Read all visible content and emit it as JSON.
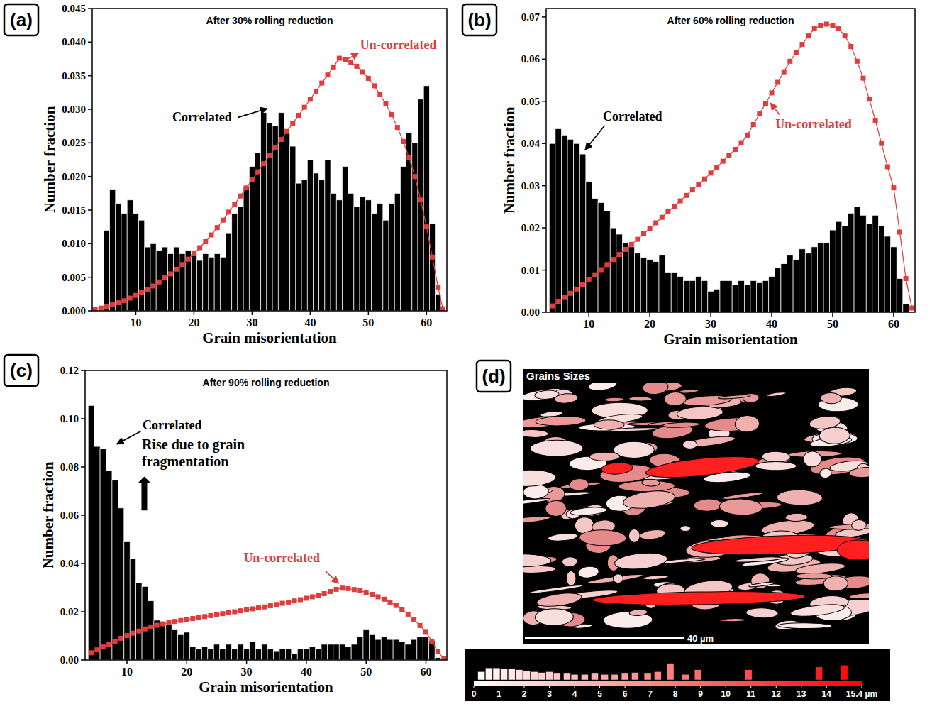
{
  "chart_data": [
    {
      "type": "histogram",
      "panel": "(a)",
      "title": "After 30% rolling reduction",
      "x_label": "Grain misorientation",
      "y_label": "Number fraction",
      "xlim": [
        2.5,
        63.5
      ],
      "ylim": [
        0,
        0.045
      ],
      "xticks": [
        10,
        20,
        30,
        40,
        50,
        60
      ],
      "yticks": [
        {
          "value": 0,
          "label": "0.000"
        },
        {
          "value": 0.005,
          "label": "0.005"
        },
        {
          "value": 0.01,
          "label": "0.010"
        },
        {
          "value": 0.015,
          "label": "0.015"
        },
        {
          "value": 0.02,
          "label": "0.020"
        },
        {
          "value": 0.025,
          "label": "0.025"
        },
        {
          "value": 0.03,
          "label": "0.030"
        },
        {
          "value": 0.035,
          "label": "0.035"
        },
        {
          "value": 0.04,
          "label": "0.040"
        },
        {
          "value": 0.045,
          "label": "0.045"
        }
      ],
      "series": [
        {
          "name": "Correlated",
          "color": "#000000",
          "bins": [
            4.5,
            5.5,
            6.5,
            7.5,
            8.5,
            9.5,
            10.5,
            11.5,
            12.5,
            13.5,
            14.5,
            15.5,
            16.5,
            17.5,
            18.5,
            19.5,
            20.5,
            21.5,
            22.5,
            23.5,
            24.5,
            25.5,
            26.5,
            27.5,
            28.5,
            29.5,
            30.5,
            31.5,
            32.5,
            33.5,
            34.5,
            35.5,
            36.5,
            37.5,
            38.5,
            39.5,
            40.5,
            41.5,
            42.5,
            43.5,
            44.5,
            45.5,
            46.5,
            47.5,
            48.5,
            49.5,
            50.5,
            51.5,
            52.5,
            53.5,
            54.5,
            55.5,
            56.5,
            57.5,
            58.5,
            59.5,
            60.5,
            61.5,
            62.5
          ],
          "values": [
            0.012,
            0.018,
            0.016,
            0.0145,
            0.0165,
            0.0145,
            0.0135,
            0.0095,
            0.01,
            0.009,
            0.0095,
            0.0085,
            0.0095,
            0.0085,
            0.009,
            0.0085,
            0.0075,
            0.0085,
            0.008,
            0.0085,
            0.008,
            0.0115,
            0.0145,
            0.0155,
            0.0185,
            0.0215,
            0.0235,
            0.0295,
            0.028,
            0.0275,
            0.0295,
            0.0265,
            0.0245,
            0.019,
            0.0195,
            0.0225,
            0.0205,
            0.0195,
            0.0225,
            0.0175,
            0.0165,
            0.0215,
            0.0175,
            0.0155,
            0.017,
            0.0165,
            0.0145,
            0.016,
            0.0135,
            0.016,
            0.0175,
            0.0215,
            0.0265,
            0.025,
            0.0315,
            0.0335,
            0.013,
            0.0025
          ]
        },
        {
          "name": "Un-correlated",
          "type": "line",
          "color": "#e03c3c",
          "marker": "square",
          "x": [
            3,
            4,
            5,
            6,
            7,
            8,
            9,
            10,
            11,
            12,
            13,
            14,
            15,
            16,
            17,
            18,
            19,
            20,
            21,
            22,
            23,
            24,
            25,
            26,
            27,
            28,
            29,
            30,
            31,
            32,
            33,
            34,
            35,
            36,
            37,
            38,
            39,
            40,
            41,
            42,
            43,
            44,
            45,
            46,
            47,
            48,
            49,
            50,
            51,
            52,
            53,
            54,
            55,
            56,
            57,
            58,
            59,
            60,
            61,
            62,
            62.8
          ],
          "values": [
            0.0002,
            0.0004,
            0.0006,
            0.0009,
            0.0012,
            0.0015,
            0.0019,
            0.0023,
            0.0027,
            0.0032,
            0.0037,
            0.0043,
            0.0049,
            0.0055,
            0.0062,
            0.0069,
            0.0077,
            0.0085,
            0.0094,
            0.0103,
            0.0113,
            0.0124,
            0.0135,
            0.0147,
            0.0159,
            0.0171,
            0.0183,
            0.0195,
            0.0207,
            0.0219,
            0.0231,
            0.0243,
            0.0255,
            0.0267,
            0.0279,
            0.0291,
            0.0303,
            0.0315,
            0.0327,
            0.0339,
            0.0351,
            0.0363,
            0.0376,
            0.0374,
            0.037,
            0.0364,
            0.0356,
            0.0346,
            0.0335,
            0.0322,
            0.0308,
            0.0292,
            0.0273,
            0.0252,
            0.0228,
            0.02,
            0.0165,
            0.0125,
            0.008,
            0.0035,
            0.0003
          ]
        }
      ]
    },
    {
      "type": "histogram",
      "panel": "(b)",
      "title": "After 60% rolling reduction",
      "x_label": "Grain misorientation",
      "y_label": "Number fraction",
      "xlim": [
        3,
        63.5
      ],
      "ylim": [
        0,
        0.072
      ],
      "xticks": [
        10,
        20,
        30,
        40,
        50,
        60
      ],
      "yticks": [
        {
          "value": 0,
          "label": "0.00"
        },
        {
          "value": 0.01,
          "label": "0.01"
        },
        {
          "value": 0.02,
          "label": "0.02"
        },
        {
          "value": 0.03,
          "label": "0.03"
        },
        {
          "value": 0.04,
          "label": "0.04"
        },
        {
          "value": 0.05,
          "label": "0.05"
        },
        {
          "value": 0.06,
          "label": "0.06"
        },
        {
          "value": 0.07,
          "label": "0.07"
        }
      ],
      "series": [
        {
          "name": "Correlated",
          "color": "#000000",
          "bins": [
            3.5,
            4.5,
            5.5,
            6.5,
            7.5,
            8.5,
            9.5,
            10.5,
            11.5,
            12.5,
            13.5,
            14.5,
            15.5,
            16.5,
            17.5,
            18.5,
            19.5,
            20.5,
            21.5,
            22.5,
            23.5,
            24.5,
            25.5,
            26.5,
            27.5,
            28.5,
            29.5,
            30.5,
            31.5,
            32.5,
            33.5,
            34.5,
            35.5,
            36.5,
            37.5,
            38.5,
            39.5,
            40.5,
            41.5,
            42.5,
            43.5,
            44.5,
            45.5,
            46.5,
            47.5,
            48.5,
            49.5,
            50.5,
            51.5,
            52.5,
            53.5,
            54.5,
            55.5,
            56.5,
            57.5,
            58.5,
            59.5,
            60.5,
            61.5,
            62.5
          ],
          "values": [
            0.04,
            0.0435,
            0.042,
            0.041,
            0.04,
            0.0375,
            0.031,
            0.027,
            0.026,
            0.024,
            0.02,
            0.0185,
            0.0165,
            0.0155,
            0.014,
            0.013,
            0.0125,
            0.012,
            0.0135,
            0.0095,
            0.0095,
            0.0085,
            0.0075,
            0.0075,
            0.0085,
            0.0075,
            0.005,
            0.0055,
            0.0075,
            0.0075,
            0.0065,
            0.0075,
            0.0065,
            0.0075,
            0.007,
            0.0075,
            0.0085,
            0.0105,
            0.0115,
            0.0135,
            0.0125,
            0.015,
            0.014,
            0.0155,
            0.0165,
            0.0165,
            0.0195,
            0.0215,
            0.0205,
            0.0235,
            0.025,
            0.023,
            0.021,
            0.023,
            0.0205,
            0.018,
            0.0155,
            0.008,
            0.002
          ]
        },
        {
          "name": "Un-correlated",
          "type": "line",
          "color": "#e03c3c",
          "marker": "square",
          "x": [
            4,
            5,
            6,
            7,
            8,
            9,
            10,
            11,
            12,
            13,
            14,
            15,
            16,
            17,
            18,
            19,
            20,
            21,
            22,
            23,
            24,
            25,
            26,
            27,
            28,
            29,
            30,
            31,
            32,
            33,
            34,
            35,
            36,
            37,
            38,
            39,
            40,
            41,
            42,
            43,
            44,
            45,
            46,
            47,
            48,
            49,
            50,
            51,
            52,
            53,
            54,
            55,
            56,
            57,
            58,
            59,
            60,
            61,
            62,
            63
          ],
          "values": [
            0.0015,
            0.0025,
            0.0035,
            0.0045,
            0.0055,
            0.0065,
            0.0077,
            0.0089,
            0.0101,
            0.0113,
            0.0125,
            0.0137,
            0.0149,
            0.0161,
            0.0173,
            0.0186,
            0.0199,
            0.0212,
            0.0225,
            0.0238,
            0.0251,
            0.0264,
            0.0277,
            0.029,
            0.0303,
            0.0316,
            0.033,
            0.0344,
            0.0358,
            0.0372,
            0.0386,
            0.0402,
            0.042,
            0.0445,
            0.047,
            0.0495,
            0.052,
            0.0545,
            0.057,
            0.0595,
            0.0615,
            0.0635,
            0.0655,
            0.0672,
            0.068,
            0.0683,
            0.068,
            0.0672,
            0.0655,
            0.063,
            0.0595,
            0.0555,
            0.0505,
            0.0455,
            0.04,
            0.0345,
            0.0295,
            0.019,
            0.008,
            0.001
          ]
        }
      ]
    },
    {
      "type": "histogram",
      "panel": "(c)",
      "title": "After 90% rolling reduction",
      "x_label": "Grain misorientation",
      "y_label": "Number fraction",
      "xlim": [
        3,
        63.5
      ],
      "ylim": [
        0,
        0.12
      ],
      "xticks": [
        10,
        20,
        30,
        40,
        50,
        60
      ],
      "yticks": [
        {
          "value": 0,
          "label": "0.00"
        },
        {
          "value": 0.02,
          "label": "0.02"
        },
        {
          "value": 0.04,
          "label": "0.04"
        },
        {
          "value": 0.06,
          "label": "0.06"
        },
        {
          "value": 0.08,
          "label": "0.08"
        },
        {
          "value": 0.1,
          "label": "0.10"
        },
        {
          "value": 0.12,
          "label": "0.12"
        }
      ],
      "annotations": [
        "Rise due to grain fragmentation"
      ],
      "series": [
        {
          "name": "Correlated",
          "color": "#000000",
          "bins": [
            3.5,
            4.5,
            5.5,
            6.5,
            7.5,
            8.5,
            9.5,
            10.5,
            11.5,
            12.5,
            13.5,
            14.5,
            15.5,
            16.5,
            17.5,
            18.5,
            19.5,
            20.5,
            21.5,
            22.5,
            23.5,
            24.5,
            25.5,
            26.5,
            27.5,
            28.5,
            29.5,
            30.5,
            31.5,
            32.5,
            33.5,
            34.5,
            35.5,
            36.5,
            37.5,
            38.5,
            39.5,
            40.5,
            41.5,
            42.5,
            43.5,
            44.5,
            45.5,
            46.5,
            47.5,
            48.5,
            49.5,
            50.5,
            51.5,
            52.5,
            53.5,
            54.5,
            55.5,
            56.5,
            57.5,
            58.5,
            59.5,
            60.5,
            61.5,
            62.5
          ],
          "values": [
            0.1055,
            0.0885,
            0.0875,
            0.0785,
            0.0745,
            0.063,
            0.049,
            0.042,
            0.032,
            0.0305,
            0.0245,
            0.0165,
            0.0155,
            0.0145,
            0.0125,
            0.0105,
            0.0115,
            0.0055,
            0.0045,
            0.0055,
            0.0045,
            0.0065,
            0.0045,
            0.0065,
            0.0045,
            0.0065,
            0.0045,
            0.0075,
            0.0045,
            0.0065,
            0.0045,
            0.0035,
            0.0045,
            0.0045,
            0.0025,
            0.0045,
            0.0045,
            0.0055,
            0.0045,
            0.0065,
            0.0065,
            0.0065,
            0.0065,
            0.0055,
            0.0065,
            0.0095,
            0.0125,
            0.0105,
            0.0085,
            0.0095,
            0.0085,
            0.0085,
            0.0075,
            0.0065,
            0.0085,
            0.0095,
            0.0095,
            0.008,
            0.001
          ]
        },
        {
          "name": "Un-correlated",
          "type": "line",
          "color": "#e03c3c",
          "marker": "square",
          "x": [
            4,
            5,
            6,
            7,
            8,
            9,
            10,
            11,
            12,
            13,
            14,
            15,
            16,
            17,
            18,
            19,
            20,
            21,
            22,
            23,
            24,
            25,
            26,
            27,
            28,
            29,
            30,
            31,
            32,
            33,
            34,
            35,
            36,
            37,
            38,
            39,
            40,
            41,
            42,
            43,
            44,
            45,
            46,
            47,
            48,
            49,
            50,
            51,
            52,
            53,
            54,
            55,
            56,
            57,
            58,
            59,
            60,
            61,
            62,
            63
          ],
          "values": [
            0.003,
            0.0042,
            0.0054,
            0.0066,
            0.0078,
            0.009,
            0.0101,
            0.0111,
            0.012,
            0.0129,
            0.0137,
            0.0144,
            0.015,
            0.0155,
            0.016,
            0.0164,
            0.0168,
            0.0172,
            0.0176,
            0.018,
            0.0184,
            0.0188,
            0.0192,
            0.0196,
            0.02,
            0.0204,
            0.0208,
            0.0212,
            0.0216,
            0.022,
            0.0225,
            0.023,
            0.0235,
            0.024,
            0.0245,
            0.025,
            0.0256,
            0.0262,
            0.0268,
            0.0275,
            0.0284,
            0.0293,
            0.0298,
            0.0296,
            0.0292,
            0.0287,
            0.028,
            0.0272,
            0.0262,
            0.0252,
            0.024,
            0.0226,
            0.021,
            0.019,
            0.0168,
            0.0143,
            0.0115,
            0.0078,
            0.0035,
            0.0005
          ]
        }
      ]
    },
    {
      "type": "grain_map",
      "panel": "(d)",
      "title": "Grains Sizes",
      "scale_label": "40 µm",
      "color_bar": {
        "type": "bar",
        "xlim": [
          0,
          15.4
        ],
        "ylim": [
          0,
          1
        ],
        "xticks": [
          0,
          1,
          2,
          3,
          4,
          5,
          6,
          7,
          8,
          9,
          10,
          11,
          12,
          13,
          14,
          {
            "value": 15.4,
            "label": "15.4 µm"
          }
        ],
        "x": [
          0.3,
          0.6,
          0.9,
          1.2,
          1.5,
          1.8,
          2.1,
          2.4,
          2.7,
          3.0,
          3.3,
          3.7,
          4.0,
          4.4,
          4.8,
          5.2,
          5.6,
          6.0,
          6.4,
          6.9,
          7.3,
          7.8,
          8.4,
          8.9,
          10.9,
          13.7,
          14.7
        ],
        "values": [
          0.45,
          0.65,
          0.65,
          0.6,
          0.6,
          0.55,
          0.5,
          0.45,
          0.4,
          0.45,
          0.35,
          0.35,
          0.3,
          0.3,
          0.35,
          0.3,
          0.3,
          0.35,
          0.4,
          0.35,
          0.45,
          0.9,
          0.3,
          0.55,
          0.55,
          0.7,
          0.8
        ],
        "gradient": [
          "#ffffff",
          "#ff0000"
        ]
      }
    }
  ]
}
